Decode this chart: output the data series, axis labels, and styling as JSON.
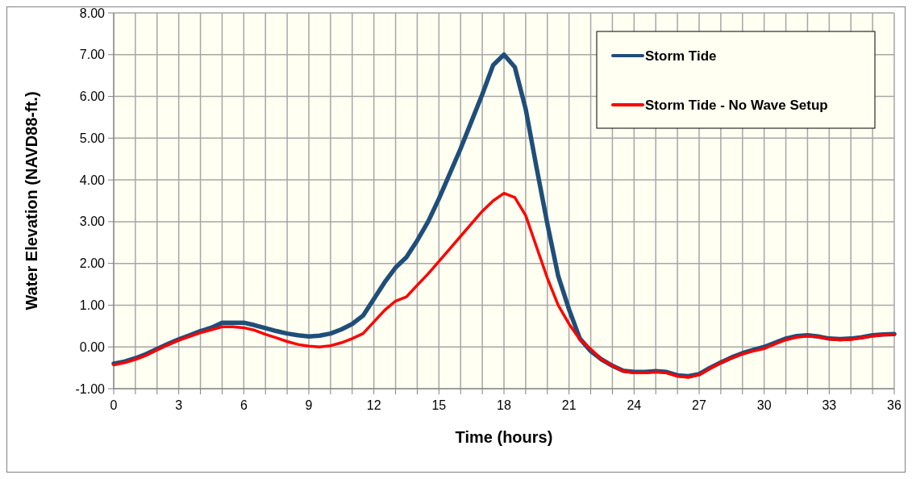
{
  "chart_data": {
    "type": "line",
    "xlabel": "Time (hours)",
    "ylabel": "Water Elevation (NAVD88-ft.)",
    "x": [
      0,
      0.5,
      1,
      1.5,
      2,
      2.5,
      3,
      3.5,
      4,
      4.5,
      5,
      5.5,
      6,
      6.5,
      7,
      7.5,
      8,
      8.5,
      9,
      9.5,
      10,
      10.5,
      11,
      11.5,
      12,
      12.5,
      13,
      13.5,
      14,
      14.5,
      15,
      15.5,
      16,
      16.5,
      17,
      17.5,
      18,
      18.5,
      19,
      19.5,
      20,
      20.5,
      21,
      21.5,
      22,
      22.5,
      23,
      23.5,
      24,
      24.5,
      25,
      25.5,
      26,
      26.5,
      27,
      27.5,
      28,
      28.5,
      29,
      29.5,
      30,
      30.5,
      31,
      31.5,
      32,
      32.5,
      33,
      33.5,
      34,
      34.5,
      35,
      35.5,
      36
    ],
    "series": [
      {
        "name": "Storm Tide",
        "color": "#1f4e79",
        "values": [
          -0.4,
          -0.35,
          -0.27,
          -0.17,
          -0.05,
          0.07,
          0.18,
          0.28,
          0.38,
          0.46,
          0.58,
          0.58,
          0.58,
          0.52,
          0.45,
          0.38,
          0.32,
          0.28,
          0.25,
          0.27,
          0.32,
          0.42,
          0.55,
          0.75,
          1.15,
          1.55,
          1.9,
          2.15,
          2.55,
          3.0,
          3.55,
          4.15,
          4.75,
          5.4,
          6.05,
          6.75,
          7.0,
          6.7,
          5.7,
          4.3,
          2.95,
          1.7,
          0.9,
          0.2,
          -0.1,
          -0.3,
          -0.45,
          -0.57,
          -0.6,
          -0.6,
          -0.58,
          -0.6,
          -0.68,
          -0.7,
          -0.65,
          -0.5,
          -0.37,
          -0.25,
          -0.15,
          -0.07,
          0.0,
          0.1,
          0.2,
          0.26,
          0.28,
          0.25,
          0.2,
          0.19,
          0.2,
          0.23,
          0.28,
          0.3,
          0.31
        ]
      },
      {
        "name": "Storm Tide - No Wave Setup",
        "color": "#ff0000",
        "values": [
          -0.43,
          -0.38,
          -0.3,
          -0.2,
          -0.07,
          0.05,
          0.16,
          0.25,
          0.34,
          0.41,
          0.48,
          0.48,
          0.46,
          0.4,
          0.3,
          0.22,
          0.13,
          0.06,
          0.02,
          0.0,
          0.03,
          0.1,
          0.2,
          0.32,
          0.6,
          0.88,
          1.1,
          1.2,
          1.48,
          1.75,
          2.05,
          2.35,
          2.65,
          2.95,
          3.25,
          3.5,
          3.68,
          3.58,
          3.15,
          2.4,
          1.65,
          1.0,
          0.55,
          0.18,
          -0.05,
          -0.3,
          -0.45,
          -0.58,
          -0.62,
          -0.62,
          -0.6,
          -0.62,
          -0.7,
          -0.73,
          -0.67,
          -0.52,
          -0.38,
          -0.27,
          -0.17,
          -0.1,
          -0.04,
          0.07,
          0.17,
          0.23,
          0.26,
          0.24,
          0.19,
          0.17,
          0.18,
          0.22,
          0.26,
          0.29,
          0.3
        ]
      }
    ],
    "xlim": [
      0,
      36
    ],
    "xticks": [
      0,
      {
        "value": 1,
        "label": null
      },
      {
        "value": 2,
        "label": null
      },
      3,
      {
        "value": 4,
        "label": null
      },
      {
        "value": 5,
        "label": null
      },
      6,
      {
        "value": 7,
        "label": null
      },
      {
        "value": 8,
        "label": null
      },
      9,
      {
        "value": 10,
        "label": null
      },
      {
        "value": 11,
        "label": null
      },
      12,
      {
        "value": 13,
        "label": null
      },
      {
        "value": 14,
        "label": null
      },
      15,
      {
        "value": 16,
        "label": null
      },
      {
        "value": 17,
        "label": null
      },
      18,
      {
        "value": 19,
        "label": null
      },
      {
        "value": 20,
        "label": null
      },
      21,
      {
        "value": 22,
        "label": null
      },
      {
        "value": 23,
        "label": null
      },
      24,
      {
        "value": 25,
        "label": null
      },
      {
        "value": 26,
        "label": null
      },
      27,
      {
        "value": 28,
        "label": null
      },
      {
        "value": 29,
        "label": null
      },
      30,
      {
        "value": 31,
        "label": null
      },
      {
        "value": 32,
        "label": null
      },
      33,
      {
        "value": 34,
        "label": null
      },
      {
        "value": 35,
        "label": null
      },
      36
    ],
    "ylim": [
      -1,
      8
    ],
    "yticks": [
      {
        "value": -1,
        "label": "-1.00"
      },
      {
        "value": 0,
        "label": "0.00"
      },
      {
        "value": 1,
        "label": "1.00"
      },
      {
        "value": 2,
        "label": "2.00"
      },
      {
        "value": 3,
        "label": "3.00"
      },
      {
        "value": 4,
        "label": "4.00"
      },
      {
        "value": 5,
        "label": "5.00"
      },
      {
        "value": 6,
        "label": "6.00"
      },
      {
        "value": 7,
        "label": "7.00"
      },
      {
        "value": 8,
        "label": "8.00"
      }
    ],
    "grid": true,
    "legend": "top right",
    "marker": "none",
    "line_style": "solid"
  }
}
